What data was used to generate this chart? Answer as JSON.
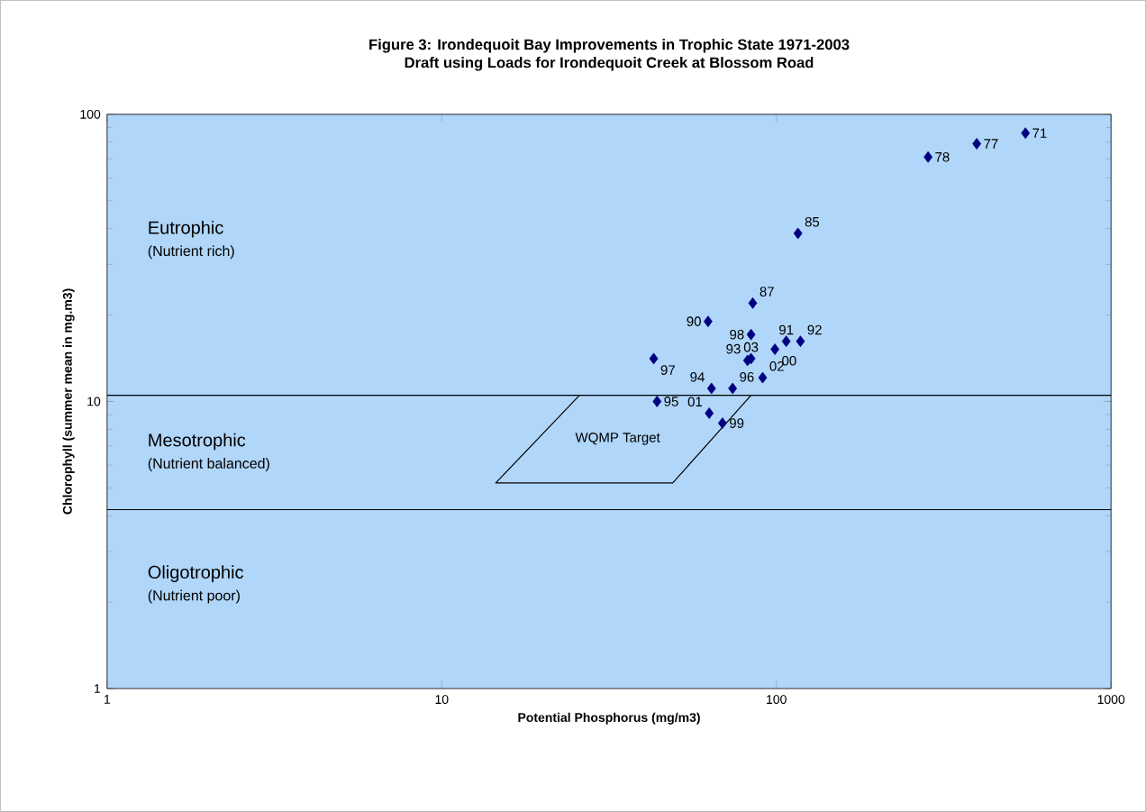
{
  "chart_data": {
    "type": "scatter",
    "title": "Figure 3: Irondequoit Bay Improvements in Trophic State 1971-2003",
    "subtitle": "Draft using Loads for Irondequoit Creek at Blossom Road",
    "xlabel": "Potential Phosphorus (mg/m3)",
    "ylabel": "Chlorophyll (summer mean in mg.m3)",
    "log": "xy",
    "xlim": [
      1,
      1000
    ],
    "ylim": [
      1,
      100
    ],
    "xticks": [
      1,
      10,
      100,
      1000
    ],
    "yticks": [
      1,
      10,
      100
    ],
    "marker": "diamond",
    "series": [
      {
        "color": "#000080",
        "x": [
          555,
          397,
          284,
          116,
          85,
          62.5,
          107,
          118,
          82,
          64,
          44,
          74,
          43,
          84,
          69,
          99,
          63,
          91,
          84
        ],
        "values": [
          86,
          79,
          71,
          38.5,
          22,
          19,
          16.2,
          16.2,
          13.9,
          11.1,
          10,
          11.1,
          14.1,
          17.1,
          8.4,
          15.2,
          9.1,
          12.1,
          14.1
        ]
      },
      {
        "type": "line",
        "color": "#000000",
        "marker": "none",
        "x": [
          25.8,
          14.5,
          49,
          84
        ],
        "values": [
          10.5,
          5.2,
          5.2,
          10.5
        ]
      }
    ],
    "ref_lines": [
      {
        "axis": "y",
        "value": 10.5,
        "color": "#000000"
      },
      {
        "axis": "y",
        "value": 4.2,
        "color": "#000000"
      }
    ],
    "annotations": [
      "Eutrophic",
      "(Nutrient rich)",
      "Mesotrophic",
      "(Nutrient balanced)",
      "Oligotrophic",
      "(Nutrient poor)",
      "WQMP Target",
      {
        "text": "71",
        "x": 555,
        "y": 86
      },
      {
        "text": "77",
        "x": 397,
        "y": 79
      },
      {
        "text": "78",
        "x": 284,
        "y": 71
      },
      {
        "text": "85",
        "x": 116,
        "y": 38.5
      },
      {
        "text": "87",
        "x": 85,
        "y": 22
      },
      {
        "text": "90",
        "x": 62.5,
        "y": 19
      },
      {
        "text": "91",
        "x": 107,
        "y": 16.2
      },
      {
        "text": "92",
        "x": 118,
        "y": 16.2
      },
      {
        "text": "93",
        "x": 82,
        "y": 13.9
      },
      {
        "text": "94",
        "x": 64,
        "y": 11.1
      },
      {
        "text": "95",
        "x": 44,
        "y": 10
      },
      {
        "text": "96",
        "x": 74,
        "y": 11.1
      },
      {
        "text": "97",
        "x": 43,
        "y": 14.1
      },
      {
        "text": "98",
        "x": 84,
        "y": 17.1
      },
      {
        "text": "99",
        "x": 69,
        "y": 8.4
      },
      {
        "text": "00",
        "x": 99,
        "y": 15.2
      },
      {
        "text": "01",
        "x": 63,
        "y": 9.1
      },
      {
        "text": "02",
        "x": 91,
        "y": 12.1
      },
      {
        "text": "03",
        "x": 84,
        "y": 14.1
      }
    ]
  }
}
